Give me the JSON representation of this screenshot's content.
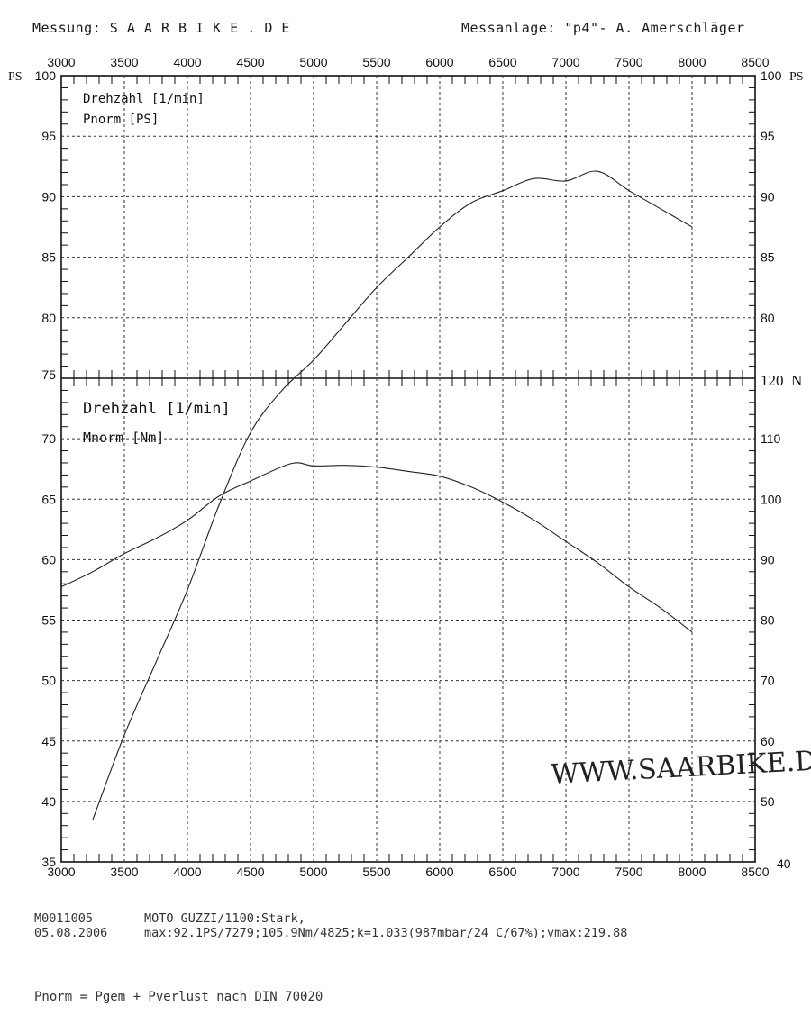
{
  "header": {
    "left": "Messung: S A A R B I K E . D E",
    "right": "Messanlage: \"p4\"- A. Amerschläger"
  },
  "chart_data": {
    "type": "line",
    "x_ticks": [
      "3000",
      "3500",
      "4000",
      "4500",
      "5000",
      "5500",
      "6000",
      "6500",
      "7000",
      "7500",
      "8000",
      "8500"
    ],
    "xlim": [
      3000,
      8500
    ],
    "power_panel": {
      "legend": [
        "Drehzahl [1/min]",
        "Pnorm [PS]"
      ],
      "ylim": [
        75,
        100
      ],
      "y_ticks": [
        "100",
        "95",
        "90",
        "85",
        "80",
        "75"
      ],
      "unit_left": "PS",
      "unit_right": "PS"
    },
    "torque_panel": {
      "legend": [
        "Drehzahl [1/min]",
        "Mnorm [Nm]"
      ],
      "ylim_left": [
        35,
        75
      ],
      "ylim_right": [
        40,
        120
      ],
      "y_ticks_left": [
        "70",
        "65",
        "60",
        "55",
        "50",
        "45",
        "40",
        "35"
      ],
      "y_ticks_right": [
        "120",
        "110",
        "100",
        "90",
        "80",
        "70",
        "60",
        "50",
        "40"
      ],
      "unit_right": "N"
    },
    "series": [
      {
        "name": "Pnorm [PS]",
        "axis": "PS",
        "x": [
          3250,
          3500,
          3750,
          4000,
          4250,
          4500,
          4750,
          5000,
          5250,
          5500,
          5750,
          6000,
          6250,
          6500,
          6750,
          7000,
          7250,
          7500,
          7750,
          8000
        ],
        "y": [
          38.5,
          45.5,
          51.5,
          57.5,
          64.5,
          70.5,
          74.0,
          76.5,
          79.5,
          82.5,
          85.0,
          87.5,
          89.5,
          90.5,
          91.5,
          91.3,
          92.1,
          90.5,
          89.0,
          87.5
        ]
      },
      {
        "name": "Mnorm [Nm]",
        "axis": "Nm",
        "x": [
          3000,
          3250,
          3500,
          3750,
          4000,
          4250,
          4500,
          4825,
          5000,
          5250,
          5500,
          5750,
          6000,
          6250,
          6500,
          6750,
          7000,
          7250,
          7500,
          7750,
          8000
        ],
        "y": [
          85.5,
          88.0,
          91.0,
          93.5,
          96.5,
          100.5,
          103.0,
          105.9,
          105.5,
          105.6,
          105.3,
          104.6,
          103.8,
          102.0,
          99.5,
          96.5,
          93.0,
          89.5,
          85.5,
          82.0,
          78.0
        ]
      }
    ],
    "watermark": "WWW.SAARBIKE.DE"
  },
  "footer": {
    "id": "M0011005",
    "date": "05.08.2006",
    "model": "MOTO GUZZI/1100:Stark,",
    "stats": "max:92.1PS/7279;105.9Nm/4825;k=1.033(987mbar/24 C/67%);vmax:219.88",
    "formula": "Pnorm = Pgem + Pverlust nach DIN 70020"
  }
}
